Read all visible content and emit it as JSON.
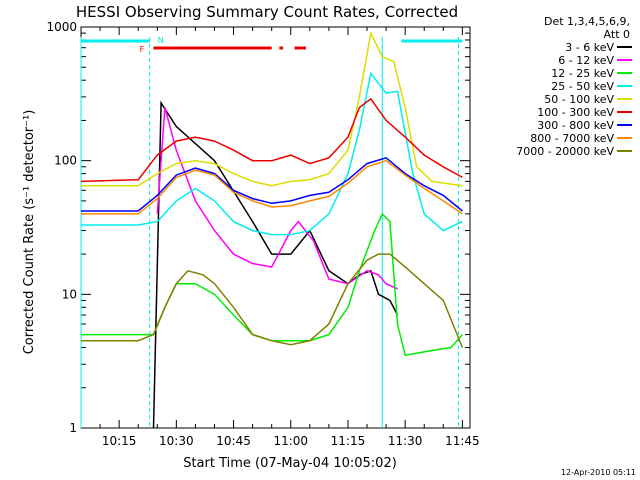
{
  "chart_data": {
    "type": "line",
    "title": "HESSI Observing Summary Count Rates, Corrected",
    "xlabel": "Start Time (07-May-04 10:05:02)",
    "ylabel": "Corrected Count Rate (s⁻¹ detector⁻¹)",
    "yscale": "log",
    "ylim": [
      1,
      1000
    ],
    "xlim": [
      "10:05",
      "11:47"
    ],
    "x_ticks": [
      "10:15",
      "10:30",
      "10:45",
      "11:00",
      "11:15",
      "11:30",
      "11:45"
    ],
    "y_ticks": [
      "1",
      "10",
      "100",
      "1000"
    ],
    "legend_title": [
      "Det 1,3,4,5,6,9,",
      "Att 0"
    ],
    "legend_position": "right",
    "annotations": {
      "flag_F": "F",
      "flag_N": "N"
    },
    "footer_date": "12-Apr-2010 05:11",
    "series": [
      {
        "name": "3 - 6 keV",
        "color": "#000000",
        "x": [
          "10:05",
          "10:24",
          "10:26",
          "10:30",
          "10:40",
          "10:50",
          "10:55",
          "11:00",
          "11:05",
          "11:10",
          "11:15",
          "11:18",
          "11:21",
          "11:23",
          "11:26",
          "11:28"
        ],
        "y": [
          null,
          1.0,
          270,
          180,
          100,
          35,
          20,
          20,
          30,
          15,
          12,
          14,
          15,
          10,
          9,
          7
        ]
      },
      {
        "name": "6 - 12 keV",
        "color": "#ff00ff",
        "x": [
          "10:25",
          "10:27",
          "10:30",
          "10:35",
          "10:40",
          "10:45",
          "10:50",
          "10:55",
          "11:00",
          "11:02",
          "11:06",
          "11:10",
          "11:15",
          "11:20",
          "11:23",
          "11:25",
          "11:28"
        ],
        "y": [
          40,
          250,
          120,
          50,
          30,
          20,
          17,
          16,
          30,
          35,
          25,
          13,
          12,
          15,
          14,
          12,
          11
        ]
      },
      {
        "name": "12 - 25 keV",
        "color": "#00ee00",
        "x": [
          "10:05",
          "10:20",
          "10:24",
          "10:27",
          "10:30",
          "10:35",
          "10:40",
          "10:45",
          "10:50",
          "10:55",
          "11:00",
          "11:05",
          "11:10",
          "11:15",
          "11:18",
          "11:22",
          "11:24",
          "11:26",
          "11:28",
          "11:30",
          "11:37",
          "11:42",
          "11:45"
        ],
        "y": [
          5,
          5,
          5,
          8,
          12,
          12,
          10,
          7,
          5,
          4.5,
          4.5,
          4.5,
          5,
          8,
          15,
          30,
          40,
          35,
          6,
          3.5,
          3.8,
          4,
          5
        ]
      },
      {
        "name": "25 - 50 keV",
        "color": "#00eeee",
        "x": [
          "10:05",
          "10:20",
          "10:25",
          "10:30",
          "10:35",
          "10:40",
          "10:45",
          "10:50",
          "10:55",
          "11:00",
          "11:05",
          "11:10",
          "11:15",
          "11:18",
          "11:21",
          "11:25",
          "11:28",
          "11:32",
          "11:35",
          "11:40",
          "11:45"
        ],
        "y": [
          33,
          33,
          35,
          50,
          62,
          50,
          35,
          30,
          28,
          28,
          30,
          40,
          80,
          170,
          450,
          320,
          330,
          80,
          40,
          30,
          35
        ]
      },
      {
        "name": "50 - 100 keV",
        "color": "#dddd00",
        "x": [
          "10:05",
          "10:20",
          "10:25",
          "10:30",
          "10:35",
          "10:40",
          "10:45",
          "10:50",
          "10:55",
          "11:00",
          "11:05",
          "11:10",
          "11:15",
          "11:18",
          "11:21",
          "11:24",
          "11:27",
          "11:30",
          "11:33",
          "11:37",
          "11:45"
        ],
        "y": [
          65,
          65,
          80,
          95,
          100,
          95,
          80,
          70,
          65,
          70,
          72,
          80,
          120,
          300,
          900,
          600,
          550,
          250,
          90,
          70,
          65
        ]
      },
      {
        "name": "100 - 300 keV",
        "color": "#ee0000",
        "x": [
          "10:05",
          "10:20",
          "10:25",
          "10:30",
          "10:35",
          "10:40",
          "10:45",
          "10:50",
          "10:55",
          "11:00",
          "11:05",
          "11:10",
          "11:15",
          "11:18",
          "11:21",
          "11:25",
          "11:30",
          "11:35",
          "11:40",
          "11:45"
        ],
        "y": [
          70,
          72,
          110,
          140,
          150,
          140,
          120,
          100,
          100,
          110,
          95,
          105,
          150,
          250,
          290,
          200,
          150,
          110,
          90,
          75
        ]
      },
      {
        "name": "300 - 800 keV",
        "color": "#0000ff",
        "x": [
          "10:05",
          "10:20",
          "10:25",
          "10:30",
          "10:35",
          "10:40",
          "10:45",
          "10:50",
          "10:55",
          "11:00",
          "11:05",
          "11:10",
          "11:15",
          "11:20",
          "11:25",
          "11:30",
          "11:35",
          "11:40",
          "11:45"
        ],
        "y": [
          42,
          42,
          55,
          78,
          88,
          80,
          60,
          52,
          48,
          50,
          55,
          58,
          72,
          95,
          105,
          80,
          65,
          55,
          42
        ]
      },
      {
        "name": "800 - 7000 keV",
        "color": "#ff8800",
        "x": [
          "10:05",
          "10:20",
          "10:25",
          "10:30",
          "10:35",
          "10:40",
          "10:45",
          "10:50",
          "10:55",
          "11:00",
          "11:05",
          "11:10",
          "11:15",
          "11:20",
          "11:25",
          "11:30",
          "11:35",
          "11:40",
          "11:45"
        ],
        "y": [
          40,
          40,
          52,
          75,
          85,
          78,
          58,
          50,
          45,
          46,
          50,
          54,
          68,
          90,
          100,
          78,
          62,
          50,
          40
        ]
      },
      {
        "name": "7000 - 20000 keV",
        "color": "#808000",
        "x": [
          "10:05",
          "10:20",
          "10:24",
          "10:27",
          "10:30",
          "10:33",
          "10:37",
          "10:40",
          "10:45",
          "10:50",
          "10:55",
          "11:00",
          "11:05",
          "11:10",
          "11:15",
          "11:20",
          "11:23",
          "11:26",
          "11:30",
          "11:35",
          "11:40",
          "11:45"
        ],
        "y": [
          4.5,
          4.5,
          5,
          8,
          12,
          15,
          14,
          12,
          8,
          5,
          4.5,
          4.2,
          4.5,
          6,
          12,
          18,
          20,
          20,
          16,
          12,
          9,
          4
        ]
      }
    ]
  },
  "bars": [
    {
      "name": "cyan-bar-left",
      "color": "#00eeee",
      "from": "10:05",
      "to": "10:23"
    },
    {
      "name": "cyan-bar-right",
      "color": "#00eeee",
      "from": "11:29",
      "to": "11:45"
    },
    {
      "name": "red-bar-1",
      "color": "#ee0000",
      "from": "10:24",
      "to": "10:55"
    },
    {
      "name": "red-bar-2",
      "color": "#ee0000",
      "from": "10:57",
      "to": "10:58"
    },
    {
      "name": "red-bar-3",
      "color": "#ee0000",
      "from": "11:01",
      "to": "11:04"
    }
  ],
  "vlines": [
    {
      "name": "vline-start-dashed",
      "color": "#00eeee",
      "at": "10:23",
      "dashed": true
    },
    {
      "name": "vline-peak-solid",
      "color": "#00eeee",
      "at": "11:24",
      "dashed": false
    },
    {
      "name": "vline-end-dashed",
      "color": "#00eeee",
      "at": "11:44",
      "dashed": true
    },
    {
      "name": "vline-left-edge",
      "color": "#00eeee",
      "at": "10:05",
      "dashed": false
    }
  ]
}
